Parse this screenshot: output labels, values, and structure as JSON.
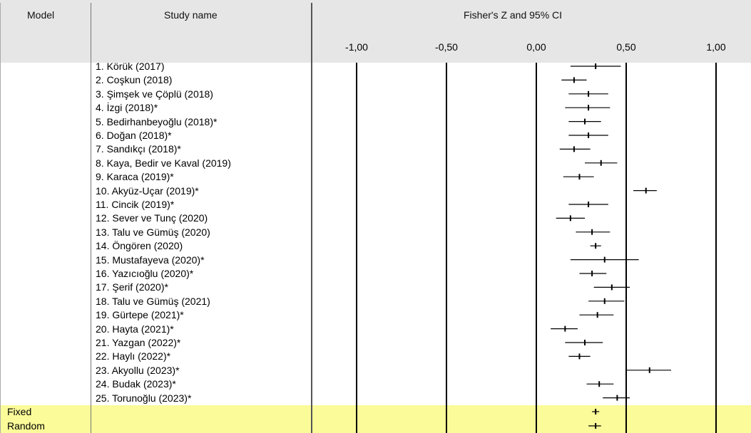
{
  "headers": {
    "model": "Model",
    "study": "Study name",
    "plot": "Fisher's Z and 95% CI"
  },
  "colors": {
    "header_bg": "#e6e6e6",
    "summary_bg": "#fbfb99",
    "grid": "#000000"
  },
  "chart_data": {
    "type": "forest",
    "xlim": [
      -1.25,
      1.25
    ],
    "ticks": [
      -1.0,
      -0.5,
      0.0,
      0.5,
      1.0
    ],
    "tick_labels": [
      "-1,00",
      "-0,50",
      "0,00",
      "0,50",
      "1,00"
    ],
    "studies": [
      {
        "name": "1. Körük (2017)",
        "est": 0.33,
        "lo": 0.19,
        "hi": 0.47
      },
      {
        "name": "2. Coşkun (2018)",
        "est": 0.21,
        "lo": 0.14,
        "hi": 0.28
      },
      {
        "name": "3. Şimşek ve Çöplü (2018)",
        "est": 0.29,
        "lo": 0.18,
        "hi": 0.4
      },
      {
        "name": "4. İzgi (2018)*",
        "est": 0.29,
        "lo": 0.16,
        "hi": 0.41
      },
      {
        "name": "5. Bedirhanbeyoğlu (2018)*",
        "est": 0.27,
        "lo": 0.18,
        "hi": 0.36
      },
      {
        "name": "6. Doğan (2018)*",
        "est": 0.29,
        "lo": 0.18,
        "hi": 0.4
      },
      {
        "name": "7. Sandıkçı (2018)*",
        "est": 0.21,
        "lo": 0.13,
        "hi": 0.3
      },
      {
        "name": "8. Kaya, Bedir ve Kaval (2019)",
        "est": 0.36,
        "lo": 0.27,
        "hi": 0.45
      },
      {
        "name": "9. Karaca (2019)*",
        "est": 0.24,
        "lo": 0.15,
        "hi": 0.32
      },
      {
        "name": "10. Akyüz-Uçar (2019)*",
        "est": 0.61,
        "lo": 0.54,
        "hi": 0.67
      },
      {
        "name": "11. Cincik (2019)*",
        "est": 0.29,
        "lo": 0.18,
        "hi": 0.4
      },
      {
        "name": "12. Sever ve Tunç (2020)",
        "est": 0.19,
        "lo": 0.11,
        "hi": 0.27
      },
      {
        "name": "13. Talu ve Gümüş (2020)",
        "est": 0.31,
        "lo": 0.22,
        "hi": 0.41
      },
      {
        "name": "14. Öngören (2020)",
        "est": 0.33,
        "lo": 0.3,
        "hi": 0.36
      },
      {
        "name": "15. Mustafayeva (2020)*",
        "est": 0.38,
        "lo": 0.19,
        "hi": 0.57
      },
      {
        "name": "16. Yazıcıoğlu (2020)*",
        "est": 0.31,
        "lo": 0.24,
        "hi": 0.39
      },
      {
        "name": "17. Şerif (2020)*",
        "est": 0.42,
        "lo": 0.32,
        "hi": 0.52
      },
      {
        "name": "18. Talu ve Gümüş (2021)",
        "est": 0.38,
        "lo": 0.29,
        "hi": 0.49
      },
      {
        "name": "19. Gürtepe (2021)*",
        "est": 0.34,
        "lo": 0.24,
        "hi": 0.43
      },
      {
        "name": "20. Hayta (2021)*",
        "est": 0.16,
        "lo": 0.08,
        "hi": 0.23
      },
      {
        "name": "21. Yazgan (2022)*",
        "est": 0.27,
        "lo": 0.16,
        "hi": 0.37
      },
      {
        "name": "22. Haylı (2022)*",
        "est": 0.24,
        "lo": 0.18,
        "hi": 0.3
      },
      {
        "name": "23. Akyollu (2023)*",
        "est": 0.63,
        "lo": 0.5,
        "hi": 0.75
      },
      {
        "name": "24. Budak (2023)*",
        "est": 0.35,
        "lo": 0.28,
        "hi": 0.43
      },
      {
        "name": "25. Torunoğlu (2023)*",
        "est": 0.45,
        "lo": 0.37,
        "hi": 0.52
      }
    ],
    "summaries": [
      {
        "name": "Fixed",
        "est": 0.33,
        "lo": 0.31,
        "hi": 0.35
      },
      {
        "name": "Random",
        "est": 0.33,
        "lo": 0.29,
        "hi": 0.36
      }
    ]
  }
}
